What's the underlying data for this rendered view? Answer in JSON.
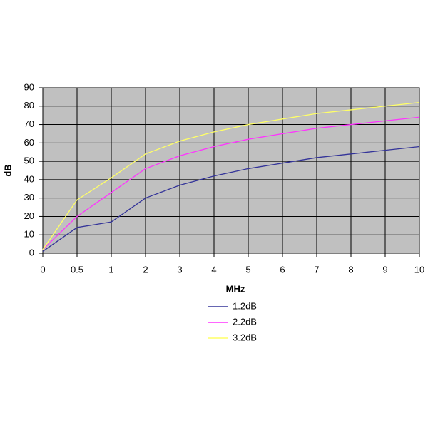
{
  "chart_data": {
    "type": "line",
    "x_label": "MHz",
    "y_label": "dB",
    "categories": [
      "0",
      "0.5",
      "1",
      "2",
      "3",
      "4",
      "5",
      "6",
      "7",
      "8",
      "9",
      "10"
    ],
    "series": [
      {
        "name": "1.2dB",
        "color": "#333399",
        "values": [
          1,
          14,
          17,
          30,
          37,
          42,
          46,
          49,
          52,
          54,
          56,
          58
        ]
      },
      {
        "name": "2.2dB",
        "color": "#ff33ff",
        "values": [
          2,
          20,
          33,
          46,
          53,
          58,
          62,
          65,
          68,
          70,
          72,
          74
        ]
      },
      {
        "name": "3.2dB",
        "color": "#ffff66",
        "values": [
          2,
          29,
          41,
          54,
          61,
          66,
          70,
          73,
          76,
          78,
          80,
          82
        ]
      }
    ],
    "ylim": [
      0,
      90
    ],
    "yticks": [
      0,
      10,
      20,
      30,
      40,
      50,
      60,
      70,
      80,
      90
    ],
    "grid": true,
    "plot_background": "#c0c0c0",
    "legend": "bottom"
  }
}
